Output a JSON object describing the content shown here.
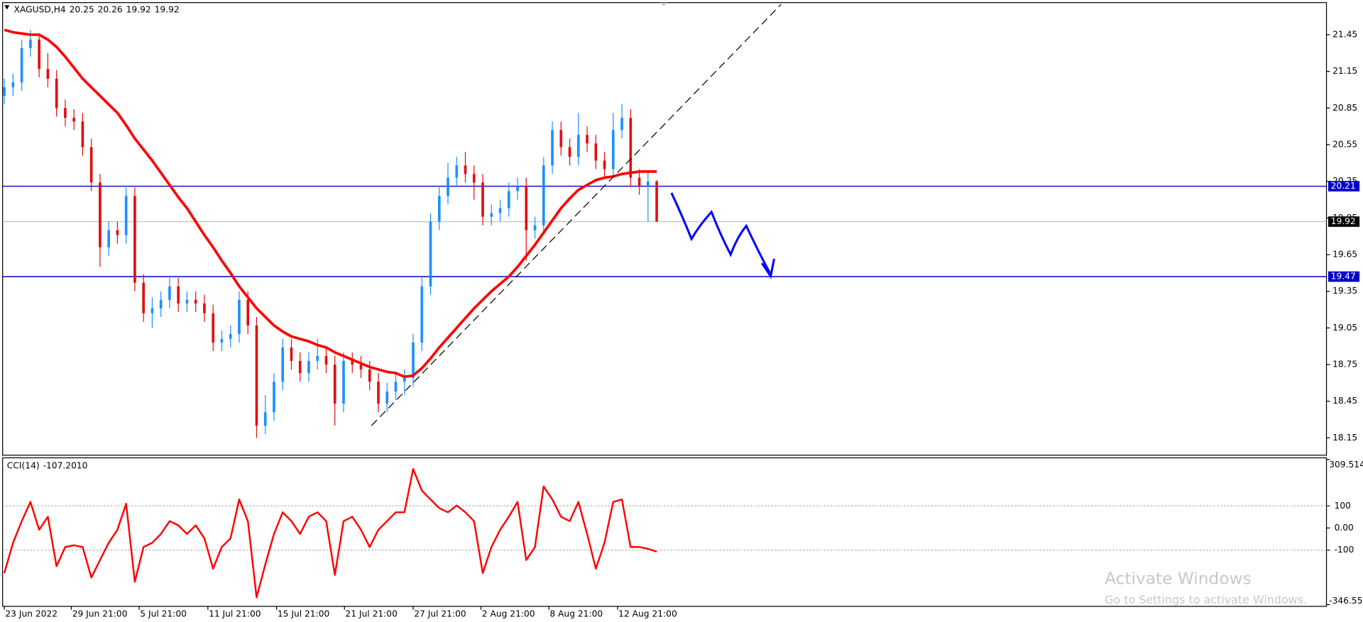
{
  "chart_data": [
    {
      "type": "candlestick",
      "symbol": "XAGUSD,H4",
      "open": [
        20.95,
        21.02,
        21.06,
        21.34,
        21.41,
        21.17,
        21.09,
        20.85,
        20.77,
        20.74,
        20.53,
        20.24,
        19.71,
        19.85,
        19.81,
        20.13,
        19.42,
        19.17,
        19.21,
        19.28,
        19.39,
        19.25,
        19.28,
        19.25,
        19.17,
        18.93,
        18.96,
        19.0,
        19.28,
        19.07,
        18.25,
        18.36,
        18.61,
        18.89,
        18.78,
        18.68,
        18.78,
        18.82,
        18.75,
        18.43,
        18.78,
        18.75,
        18.71,
        18.61,
        18.43,
        18.53,
        18.61,
        18.64,
        18.93,
        19.39,
        19.92,
        20.13,
        20.28,
        20.38,
        20.31,
        20.24,
        19.96,
        19.99,
        20.03,
        20.17,
        20.21,
        19.85,
        19.89,
        20.38,
        20.67,
        20.53,
        20.45,
        20.63,
        20.56,
        20.42,
        20.35,
        20.67,
        20.77,
        20.28,
        20.21,
        20.25
      ],
      "high": [
        21.09,
        21.13,
        21.41,
        21.49,
        21.46,
        21.3,
        21.16,
        20.92,
        20.84,
        20.81,
        20.6,
        20.31,
        19.92,
        19.92,
        20.2,
        20.2,
        19.49,
        19.3,
        19.35,
        19.46,
        19.46,
        19.35,
        19.35,
        19.32,
        19.24,
        19.03,
        19.07,
        19.35,
        19.35,
        19.14,
        18.5,
        18.68,
        18.96,
        18.96,
        18.85,
        18.85,
        18.96,
        18.89,
        18.82,
        18.85,
        18.85,
        18.82,
        18.78,
        18.68,
        18.6,
        18.68,
        18.71,
        19.0,
        19.46,
        19.99,
        20.2,
        20.4,
        20.45,
        20.49,
        20.38,
        20.31,
        20.06,
        20.1,
        20.24,
        20.28,
        20.28,
        19.96,
        20.45,
        20.74,
        20.74,
        20.6,
        20.81,
        20.7,
        20.63,
        20.49,
        20.81,
        20.88,
        20.84,
        20.35,
        20.32,
        20.26
      ],
      "low": [
        20.88,
        20.95,
        20.99,
        21.27,
        21.1,
        21.02,
        20.78,
        20.7,
        20.67,
        20.46,
        20.17,
        19.55,
        19.64,
        19.74,
        19.74,
        19.35,
        19.1,
        19.05,
        19.14,
        19.21,
        19.18,
        19.18,
        19.18,
        19.1,
        18.86,
        18.86,
        18.89,
        18.93,
        19.0,
        18.15,
        18.18,
        18.29,
        18.54,
        18.71,
        18.61,
        18.61,
        18.71,
        18.68,
        18.25,
        18.36,
        18.68,
        18.64,
        18.54,
        18.36,
        18.36,
        18.46,
        18.5,
        18.57,
        18.86,
        19.32,
        19.85,
        20.06,
        20.21,
        20.24,
        20.1,
        19.89,
        19.89,
        19.92,
        19.96,
        20.1,
        19.6,
        19.78,
        19.82,
        20.31,
        20.46,
        20.38,
        20.38,
        20.49,
        20.35,
        20.28,
        20.28,
        20.6,
        20.21,
        20.14,
        19.92,
        19.92
      ],
      "close": [
        21.02,
        21.06,
        21.34,
        21.41,
        21.17,
        21.09,
        20.85,
        20.77,
        20.74,
        20.53,
        20.24,
        19.71,
        19.85,
        19.81,
        20.13,
        19.42,
        19.17,
        19.21,
        19.28,
        19.39,
        19.25,
        19.28,
        19.25,
        19.17,
        18.93,
        18.96,
        19.0,
        19.28,
        19.07,
        18.25,
        18.36,
        18.61,
        18.89,
        18.78,
        18.68,
        18.78,
        18.82,
        18.75,
        18.43,
        18.78,
        18.75,
        18.71,
        18.61,
        18.43,
        18.53,
        18.61,
        18.64,
        18.93,
        19.39,
        19.92,
        20.13,
        20.28,
        20.38,
        20.31,
        20.24,
        19.96,
        19.99,
        20.03,
        20.17,
        20.21,
        19.85,
        19.89,
        20.38,
        20.67,
        20.53,
        20.45,
        20.63,
        20.56,
        20.42,
        20.35,
        20.67,
        20.77,
        20.28,
        20.21,
        20.25,
        19.92
      ],
      "bull_color": "#1e90ff",
      "bear_color": "#e01010",
      "ma": {
        "color": "#ff0000",
        "values": [
          21.49,
          21.47,
          21.46,
          21.45,
          21.45,
          21.41,
          21.35,
          21.27,
          21.18,
          21.09,
          21.02,
          20.95,
          20.88,
          20.81,
          20.71,
          20.6,
          20.51,
          20.42,
          20.32,
          20.22,
          20.12,
          20.03,
          19.92,
          19.81,
          19.71,
          19.6,
          19.5,
          19.39,
          19.3,
          19.21,
          19.14,
          19.07,
          19.02,
          18.98,
          18.96,
          18.94,
          18.91,
          18.89,
          18.85,
          18.82,
          18.79,
          18.76,
          18.73,
          18.71,
          18.69,
          18.68,
          18.65,
          18.66,
          18.72,
          18.8,
          18.89,
          18.97,
          19.05,
          19.13,
          19.21,
          19.28,
          19.35,
          19.41,
          19.47,
          19.55,
          19.64,
          19.73,
          19.83,
          19.93,
          20.03,
          20.11,
          20.18,
          20.22,
          20.26,
          20.28,
          20.29,
          20.31,
          20.32,
          20.33,
          20.33,
          20.33
        ]
      },
      "hlines": [
        {
          "value": 20.21,
          "color": "#0000cd"
        },
        {
          "value": 19.47,
          "color": "#0000cd"
        }
      ],
      "ylim": [
        18.008,
        21.713
      ],
      "yticks": [
        21.45,
        21.15,
        20.85,
        20.55,
        20.25,
        19.95,
        19.65,
        19.35,
        19.05,
        18.75,
        18.45,
        18.15
      ],
      "xlim": [
        -0.2,
        152
      ],
      "xticks": [
        {
          "value": 0,
          "label": "23 Jun 2022"
        },
        {
          "value": 7.7,
          "label": "29 Jun 21:00"
        },
        {
          "value": 15.5,
          "label": "5 Jul 21:00"
        },
        {
          "value": 23.4,
          "label": "11 Jul 21:00"
        },
        {
          "value": 31.3,
          "label": "15 Jul 21:00"
        },
        {
          "value": 39.1,
          "label": "21 Jul 21:00"
        },
        {
          "value": 47,
          "label": "27 Jul 21:00"
        },
        {
          "value": 54.8,
          "label": "2 Aug 21:00"
        },
        {
          "value": 62.6,
          "label": "8 Aug 21:00"
        },
        {
          "value": 70.5,
          "label": "12 Aug 21:00"
        }
      ]
    },
    {
      "type": "line",
      "name": "CCI(14)",
      "color": "#ff0000",
      "values": [
        -204,
        -67,
        31,
        118,
        -8,
        51,
        -173,
        -86,
        -78,
        -86,
        -224,
        -145,
        -67,
        -8,
        110,
        -243,
        -86,
        -67,
        -27,
        31,
        12,
        -27,
        12,
        -47,
        -184,
        -86,
        -47,
        129,
        31,
        -314,
        -165,
        -27,
        71,
        31,
        -27,
        51,
        71,
        31,
        -212,
        31,
        51,
        -8,
        -86,
        -8,
        31,
        71,
        71,
        267,
        169,
        129,
        90,
        71,
        102,
        71,
        31,
        -204,
        -86,
        -8,
        51,
        118,
        -145,
        -86,
        188,
        129,
        51,
        31,
        118,
        -27,
        -184,
        -67,
        118,
        129,
        -86,
        -86,
        -94,
        -107.201
      ],
      "value_labels": [
        null,
        null,
        null,
        null,
        null,
        null,
        null,
        null,
        null,
        null,
        null,
        null,
        null,
        null,
        null,
        null,
        null,
        null,
        null,
        null,
        null,
        null,
        null,
        null,
        null,
        null,
        null,
        null,
        null,
        null,
        null,
        null,
        null,
        null,
        null,
        null,
        null,
        null,
        null,
        null,
        null,
        null,
        null,
        null,
        null,
        null,
        null,
        null,
        null,
        null,
        null,
        null,
        null,
        null,
        null,
        null,
        null,
        null,
        null,
        null,
        null,
        null,
        null,
        null,
        null,
        null,
        null,
        null,
        null,
        null,
        null,
        null,
        null,
        null,
        null,
        "-107.2010"
      ],
      "ylim": [
        -346.559,
        309.514
      ],
      "yticks": [
        309.514,
        100,
        {
          "value": 0,
          "label": "0.00"
        },
        -100,
        -346.559
      ],
      "grid": true
    }
  ],
  "watermark": {
    "title": "Activate Windows",
    "subtitle": "Go to Settings to activate Windows."
  }
}
